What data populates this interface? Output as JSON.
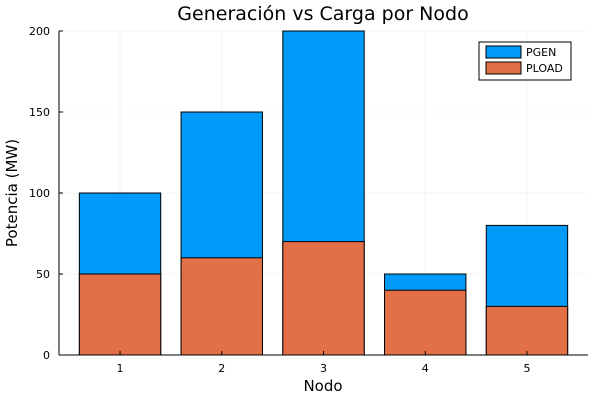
{
  "chart_data": {
    "type": "bar",
    "title": "Generación vs Carga por Nodo",
    "xlabel": "Nodo",
    "ylabel": "Potencia (MW)",
    "categories": [
      "1",
      "2",
      "3",
      "4",
      "5"
    ],
    "ylim": [
      0,
      200
    ],
    "yticks": [
      0,
      50,
      100,
      150,
      200
    ],
    "grid": true,
    "legend_position": "top-right",
    "series": [
      {
        "name": "PGEN",
        "values": [
          100,
          150,
          200,
          50,
          80
        ],
        "color": "#009af9"
      },
      {
        "name": "PLOAD",
        "values": [
          50,
          60,
          70,
          40,
          30
        ],
        "color": "#e26f46"
      }
    ]
  }
}
